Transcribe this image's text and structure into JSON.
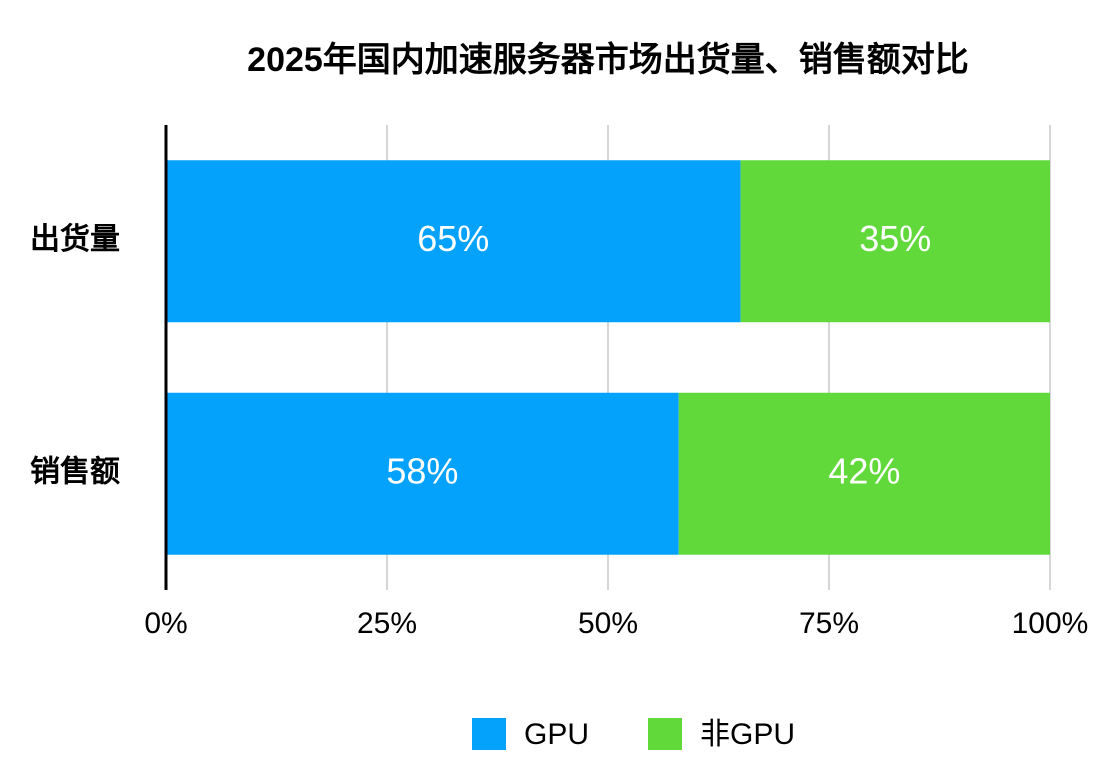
{
  "chart_data": {
    "type": "stacked_barh",
    "title": "2025年国内加速服务器市场出货量、销售额对比",
    "categories": [
      "出货量",
      "销售额"
    ],
    "series": [
      {
        "name": "GPU",
        "color": "#05a2fb",
        "values": [
          65,
          58
        ],
        "value_labels": [
          "65%",
          "58%"
        ]
      },
      {
        "name": "非GPU",
        "color": "#62d93a",
        "values": [
          35,
          42
        ],
        "value_labels": [
          "35%",
          "42%"
        ]
      }
    ],
    "xlim": [
      0,
      100
    ],
    "xticks": [
      {
        "value": 0,
        "label": "0%"
      },
      {
        "value": 25,
        "label": "25%"
      },
      {
        "value": 50,
        "label": "50%"
      },
      {
        "value": 75,
        "label": "75%"
      },
      {
        "value": 100,
        "label": "100%"
      }
    ],
    "grid": true,
    "legend": "bottom"
  }
}
